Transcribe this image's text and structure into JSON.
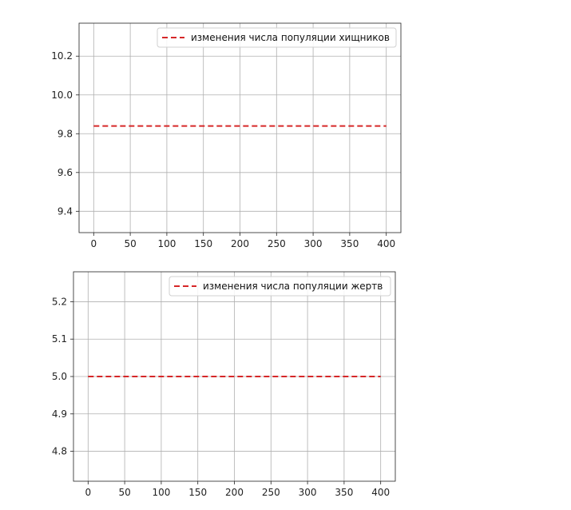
{
  "chart_data": [
    {
      "type": "line",
      "title": "",
      "xlabel": "",
      "ylabel": "",
      "xlim": [
        -20,
        420
      ],
      "ylim": [
        9.29,
        10.37
      ],
      "x_ticks": [
        0,
        50,
        100,
        150,
        200,
        250,
        300,
        350,
        400
      ],
      "y_ticks": [
        9.4,
        9.6,
        9.8,
        10.0,
        10.2
      ],
      "x_tick_labels": [
        "0",
        "50",
        "100",
        "150",
        "200",
        "250",
        "300",
        "350",
        "400"
      ],
      "y_tick_labels": [
        "9.4",
        "9.6",
        "9.8",
        "10.0",
        "10.2"
      ],
      "grid": true,
      "legend_position": "top-right",
      "series": [
        {
          "name": "изменения числа популяции хищников",
          "color": "#d62728",
          "style": "dashed",
          "x": [
            0,
            50,
            100,
            150,
            200,
            250,
            300,
            350,
            400
          ],
          "y": [
            9.84,
            9.84,
            9.84,
            9.84,
            9.84,
            9.84,
            9.84,
            9.84,
            9.84
          ]
        }
      ]
    },
    {
      "type": "line",
      "title": "",
      "xlabel": "",
      "ylabel": "",
      "xlim": [
        -20,
        420
      ],
      "ylim": [
        4.72,
        5.28
      ],
      "x_ticks": [
        0,
        50,
        100,
        150,
        200,
        250,
        300,
        350,
        400
      ],
      "y_ticks": [
        4.8,
        4.9,
        5.0,
        5.1,
        5.2
      ],
      "x_tick_labels": [
        "0",
        "50",
        "100",
        "150",
        "200",
        "250",
        "300",
        "350",
        "400"
      ],
      "y_tick_labels": [
        "4.8",
        "4.9",
        "5.0",
        "5.1",
        "5.2"
      ],
      "grid": true,
      "legend_position": "top-right",
      "series": [
        {
          "name": "изменения числа популяции жертв",
          "color": "#d62728",
          "style": "dashed",
          "x": [
            0,
            50,
            100,
            150,
            200,
            250,
            300,
            350,
            400
          ],
          "y": [
            5.0,
            5.0,
            5.0,
            5.0,
            5.0,
            5.0,
            5.0,
            5.0,
            5.0
          ]
        }
      ]
    }
  ]
}
